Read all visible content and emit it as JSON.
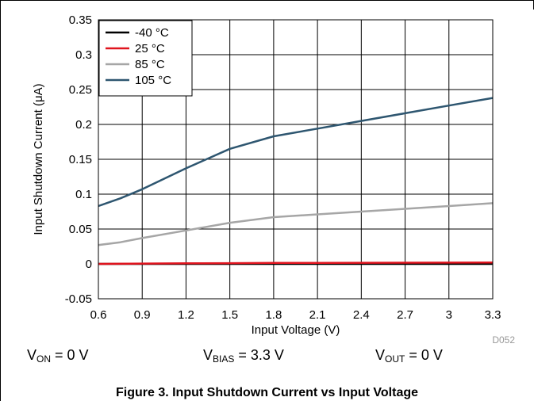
{
  "chart_data": {
    "type": "line",
    "title": "",
    "xlabel": "Input Voltage (V)",
    "ylabel": "Input Shutdown Current (μA)",
    "xlim": [
      0.6,
      3.3
    ],
    "ylim": [
      -0.05,
      0.35
    ],
    "x_ticks": [
      "0.6",
      "0.9",
      "1.2",
      "1.5",
      "1.8",
      "2.1",
      "2.4",
      "2.7",
      "3",
      "3.3"
    ],
    "y_ticks": [
      "-0.05",
      "0",
      "0.05",
      "0.1",
      "0.15",
      "0.2",
      "0.25",
      "0.3",
      "0.35"
    ],
    "grid": true,
    "legend_position": "top-left",
    "series": [
      {
        "name": "-40 °C",
        "color": "#000000",
        "x": [
          0.6,
          0.9,
          1.2,
          1.5,
          1.8,
          2.1,
          2.4,
          2.7,
          3.0,
          3.3
        ],
        "y": [
          0.0,
          0.0,
          0.0,
          0.0,
          0.0,
          0.0,
          0.0,
          0.0,
          0.0,
          0.0
        ]
      },
      {
        "name": "25 °C",
        "color": "#e0141e",
        "x": [
          0.6,
          0.9,
          1.2,
          1.5,
          1.8,
          2.1,
          2.4,
          2.7,
          3.0,
          3.3
        ],
        "y": [
          0.0,
          0.0005,
          0.0008,
          0.001,
          0.0015,
          0.0015,
          0.0016,
          0.0017,
          0.0018,
          0.002
        ]
      },
      {
        "name": "85 °C",
        "color": "#a6a6a6",
        "x": [
          0.6,
          0.75,
          0.9,
          1.2,
          1.5,
          1.8,
          2.1,
          2.4,
          2.7,
          3.0,
          3.3
        ],
        "y": [
          0.027,
          0.031,
          0.037,
          0.048,
          0.059,
          0.067,
          0.071,
          0.075,
          0.079,
          0.083,
          0.087
        ]
      },
      {
        "name": "105 °C",
        "color": "#2e5670",
        "x": [
          0.6,
          0.75,
          0.9,
          1.2,
          1.5,
          1.8,
          2.1,
          2.4,
          2.7,
          3.0,
          3.3
        ],
        "y": [
          0.083,
          0.094,
          0.107,
          0.137,
          0.165,
          0.183,
          0.194,
          0.205,
          0.216,
          0.227,
          0.238
        ]
      }
    ],
    "figure_code": "D052"
  },
  "conditions": {
    "von": {
      "main": "V",
      "sub": "ON",
      "value": " = 0 V"
    },
    "vbias": {
      "main": "V",
      "sub": "BIAS",
      "value": " = 3.3 V"
    },
    "vout": {
      "main": "V",
      "sub": "OUT",
      "value": " = 0 V"
    }
  },
  "caption": "Figure 3. Input Shutdown Current vs Input Voltage"
}
